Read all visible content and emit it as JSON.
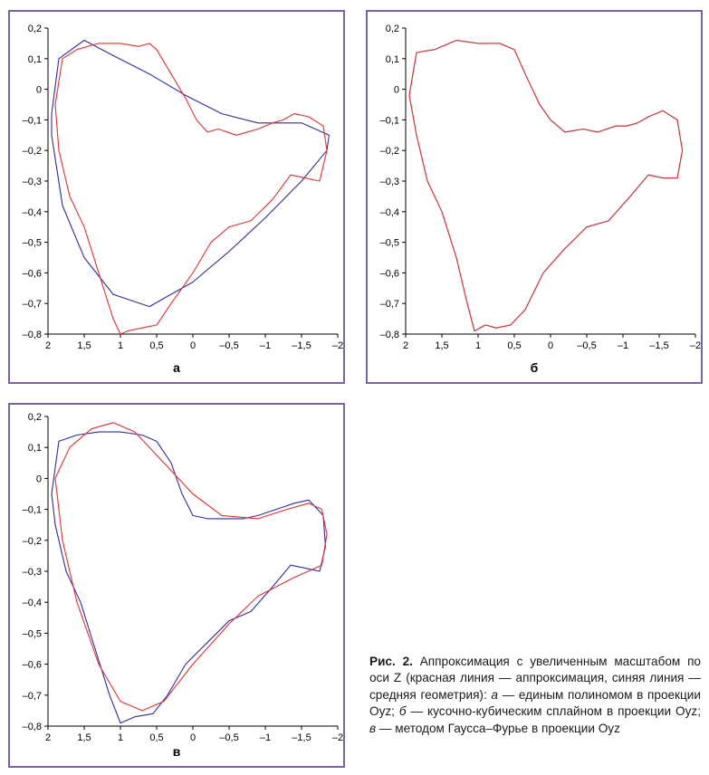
{
  "panels": [
    {
      "label": "а",
      "chart_data": {
        "type": "line",
        "xlim": [
          2,
          -2
        ],
        "ylim": [
          -0.8,
          0.2
        ],
        "xticks": [
          "2",
          "1,5",
          "1",
          "0,5",
          "0",
          "–0,5",
          "–1",
          "–1,5",
          "–2"
        ],
        "yticks": [
          "0,2",
          "0,1",
          "0",
          "–0,1",
          "–0,2",
          "–0,3",
          "–0,4",
          "–0,5",
          "–0,6",
          "–0,7",
          "–0,8"
        ],
        "grid": false,
        "series": [
          {
            "color": "#2e2e9e",
            "points": [
              [
                1.95,
                -0.08
              ],
              [
                1.85,
                0.1
              ],
              [
                1.5,
                0.16
              ],
              [
                1.1,
                0.11
              ],
              [
                0.6,
                0.05
              ],
              [
                0.1,
                -0.02
              ],
              [
                -0.4,
                -0.08
              ],
              [
                -0.9,
                -0.11
              ],
              [
                -1.5,
                -0.11
              ],
              [
                -1.88,
                -0.15
              ],
              [
                -1.85,
                -0.2
              ],
              [
                -1.5,
                -0.3
              ],
              [
                -1,
                -0.42
              ],
              [
                -0.5,
                -0.53
              ],
              [
                0,
                -0.63
              ],
              [
                0.6,
                -0.71
              ],
              [
                1.1,
                -0.67
              ],
              [
                1.5,
                -0.55
              ],
              [
                1.8,
                -0.38
              ],
              [
                1.95,
                -0.15
              ],
              [
                1.95,
                -0.08
              ]
            ]
          },
          {
            "color": "#e03232",
            "points": [
              [
                1.9,
                -0.05
              ],
              [
                1.8,
                0.1
              ],
              [
                1.6,
                0.13
              ],
              [
                1.3,
                0.15
              ],
              [
                1,
                0.15
              ],
              [
                0.75,
                0.14
              ],
              [
                0.6,
                0.15
              ],
              [
                0.5,
                0.13
              ],
              [
                0.3,
                0.05
              ],
              [
                0.1,
                -0.03
              ],
              [
                -0.05,
                -0.1
              ],
              [
                -0.2,
                -0.14
              ],
              [
                -0.35,
                -0.13
              ],
              [
                -0.6,
                -0.15
              ],
              [
                -0.9,
                -0.13
              ],
              [
                -1.1,
                -0.11
              ],
              [
                -1.25,
                -0.1
              ],
              [
                -1.4,
                -0.08
              ],
              [
                -1.6,
                -0.09
              ],
              [
                -1.8,
                -0.12
              ],
              [
                -1.85,
                -0.2
              ],
              [
                -1.75,
                -0.3
              ],
              [
                -1.55,
                -0.29
              ],
              [
                -1.35,
                -0.28
              ],
              [
                -1.1,
                -0.36
              ],
              [
                -0.8,
                -0.43
              ],
              [
                -0.5,
                -0.45
              ],
              [
                -0.25,
                -0.5
              ],
              [
                0,
                -0.6
              ],
              [
                0.3,
                -0.7
              ],
              [
                0.5,
                -0.77
              ],
              [
                0.7,
                -0.78
              ],
              [
                0.9,
                -0.79
              ],
              [
                1,
                -0.8
              ],
              [
                1.1,
                -0.75
              ],
              [
                1.3,
                -0.6
              ],
              [
                1.5,
                -0.45
              ],
              [
                1.7,
                -0.35
              ],
              [
                1.85,
                -0.2
              ],
              [
                1.9,
                -0.05
              ]
            ]
          }
        ]
      }
    },
    {
      "label": "б",
      "chart_data": {
        "type": "line",
        "xlim": [
          2,
          -2
        ],
        "ylim": [
          -0.8,
          0.2
        ],
        "xticks": [
          "2",
          "1,5",
          "1",
          "0,5",
          "0",
          "–0,5",
          "–1",
          "–1,5",
          "–2"
        ],
        "yticks": [
          "0,2",
          "0,1",
          "0",
          "–0,1",
          "–0,2",
          "–0,3",
          "–0,4",
          "–0,5",
          "–0,6",
          "–0,7",
          "–0,8"
        ],
        "grid": false,
        "series": [
          {
            "color": "#2e8fb8",
            "points": [
              [
                1.95,
                -0.02
              ],
              [
                1.85,
                0.12
              ],
              [
                1.6,
                0.13
              ],
              [
                1.3,
                0.16
              ],
              [
                1,
                0.15
              ],
              [
                0.7,
                0.15
              ],
              [
                0.5,
                0.13
              ],
              [
                0.35,
                0.05
              ],
              [
                0.15,
                -0.05
              ],
              [
                0,
                -0.1
              ],
              [
                -0.2,
                -0.14
              ],
              [
                -0.45,
                -0.13
              ],
              [
                -0.65,
                -0.14
              ],
              [
                -0.9,
                -0.12
              ],
              [
                -1.05,
                -0.12
              ],
              [
                -1.2,
                -0.11
              ],
              [
                -1.35,
                -0.09
              ],
              [
                -1.55,
                -0.07
              ],
              [
                -1.75,
                -0.1
              ],
              [
                -1.82,
                -0.2
              ],
              [
                -1.75,
                -0.29
              ],
              [
                -1.55,
                -0.29
              ],
              [
                -1.35,
                -0.28
              ],
              [
                -1.1,
                -0.35
              ],
              [
                -0.8,
                -0.43
              ],
              [
                -0.5,
                -0.45
              ],
              [
                -0.2,
                -0.52
              ],
              [
                0.1,
                -0.6
              ],
              [
                0.35,
                -0.72
              ],
              [
                0.55,
                -0.77
              ],
              [
                0.75,
                -0.78
              ],
              [
                0.9,
                -0.77
              ],
              [
                1.05,
                -0.79
              ],
              [
                1.15,
                -0.7
              ],
              [
                1.3,
                -0.55
              ],
              [
                1.5,
                -0.4
              ],
              [
                1.7,
                -0.3
              ],
              [
                1.85,
                -0.15
              ],
              [
                1.95,
                -0.02
              ]
            ]
          },
          {
            "color": "#e03232",
            "points": [
              [
                1.95,
                -0.02
              ],
              [
                1.85,
                0.12
              ],
              [
                1.6,
                0.13
              ],
              [
                1.3,
                0.16
              ],
              [
                1,
                0.15
              ],
              [
                0.7,
                0.15
              ],
              [
                0.5,
                0.13
              ],
              [
                0.35,
                0.05
              ],
              [
                0.15,
                -0.05
              ],
              [
                0,
                -0.1
              ],
              [
                -0.2,
                -0.14
              ],
              [
                -0.45,
                -0.13
              ],
              [
                -0.65,
                -0.14
              ],
              [
                -0.9,
                -0.12
              ],
              [
                -1.05,
                -0.12
              ],
              [
                -1.2,
                -0.11
              ],
              [
                -1.35,
                -0.09
              ],
              [
                -1.55,
                -0.07
              ],
              [
                -1.75,
                -0.1
              ],
              [
                -1.82,
                -0.2
              ],
              [
                -1.75,
                -0.29
              ],
              [
                -1.55,
                -0.29
              ],
              [
                -1.35,
                -0.28
              ],
              [
                -1.1,
                -0.35
              ],
              [
                -0.8,
                -0.43
              ],
              [
                -0.5,
                -0.45
              ],
              [
                -0.2,
                -0.52
              ],
              [
                0.1,
                -0.6
              ],
              [
                0.35,
                -0.72
              ],
              [
                0.55,
                -0.77
              ],
              [
                0.75,
                -0.78
              ],
              [
                0.9,
                -0.77
              ],
              [
                1.05,
                -0.79
              ],
              [
                1.15,
                -0.7
              ],
              [
                1.3,
                -0.55
              ],
              [
                1.5,
                -0.4
              ],
              [
                1.7,
                -0.3
              ],
              [
                1.85,
                -0.15
              ],
              [
                1.95,
                -0.02
              ]
            ]
          }
        ]
      }
    },
    {
      "label": "в",
      "chart_data": {
        "type": "line",
        "xlim": [
          2,
          -2
        ],
        "ylim": [
          -0.8,
          0.2
        ],
        "xticks": [
          "2",
          "1,5",
          "1",
          "0,5",
          "0",
          "–0,5",
          "–1",
          "–1,5",
          "–2"
        ],
        "yticks": [
          "0,2",
          "0,1",
          "0",
          "–0,1",
          "–0,2",
          "–0,3",
          "–0,4",
          "–0,5",
          "–0,6",
          "–0,7",
          "–0,8"
        ],
        "grid": false,
        "series": [
          {
            "color": "#2e2e9e",
            "points": [
              [
                1.95,
                -0.05
              ],
              [
                1.85,
                0.12
              ],
              [
                1.6,
                0.14
              ],
              [
                1.3,
                0.15
              ],
              [
                1,
                0.15
              ],
              [
                0.7,
                0.14
              ],
              [
                0.5,
                0.12
              ],
              [
                0.3,
                0.05
              ],
              [
                0.15,
                -0.05
              ],
              [
                0,
                -0.12
              ],
              [
                -0.2,
                -0.13
              ],
              [
                -0.45,
                -0.13
              ],
              [
                -0.7,
                -0.13
              ],
              [
                -0.9,
                -0.12
              ],
              [
                -1.15,
                -0.1
              ],
              [
                -1.4,
                -0.08
              ],
              [
                -1.6,
                -0.07
              ],
              [
                -1.8,
                -0.12
              ],
              [
                -1.83,
                -0.22
              ],
              [
                -1.75,
                -0.3
              ],
              [
                -1.55,
                -0.29
              ],
              [
                -1.35,
                -0.28
              ],
              [
                -1.1,
                -0.35
              ],
              [
                -0.8,
                -0.43
              ],
              [
                -0.5,
                -0.46
              ],
              [
                -0.2,
                -0.53
              ],
              [
                0.1,
                -0.6
              ],
              [
                0.35,
                -0.7
              ],
              [
                0.55,
                -0.76
              ],
              [
                0.8,
                -0.77
              ],
              [
                1,
                -0.79
              ],
              [
                1.15,
                -0.7
              ],
              [
                1.35,
                -0.55
              ],
              [
                1.55,
                -0.4
              ],
              [
                1.75,
                -0.3
              ],
              [
                1.9,
                -0.15
              ],
              [
                1.95,
                -0.05
              ]
            ]
          },
          {
            "color": "#e03232",
            "points": [
              [
                1.9,
                0
              ],
              [
                1.7,
                0.1
              ],
              [
                1.4,
                0.16
              ],
              [
                1.1,
                0.18
              ],
              [
                0.8,
                0.15
              ],
              [
                0.4,
                0.05
              ],
              [
                0,
                -0.05
              ],
              [
                -0.4,
                -0.12
              ],
              [
                -0.9,
                -0.13
              ],
              [
                -1.3,
                -0.1
              ],
              [
                -1.6,
                -0.08
              ],
              [
                -1.78,
                -0.1
              ],
              [
                -1.85,
                -0.18
              ],
              [
                -1.78,
                -0.28
              ],
              [
                -1.4,
                -0.32
              ],
              [
                -0.9,
                -0.38
              ],
              [
                -0.5,
                -0.47
              ],
              [
                0,
                -0.6
              ],
              [
                0.4,
                -0.72
              ],
              [
                0.7,
                -0.75
              ],
              [
                1,
                -0.72
              ],
              [
                1.3,
                -0.6
              ],
              [
                1.6,
                -0.4
              ],
              [
                1.8,
                -0.2
              ],
              [
                1.9,
                0
              ]
            ]
          }
        ]
      }
    }
  ],
  "caption": {
    "fig": "Рис. 2.",
    "text_1": " Аппроксимация с увеличенным масштабом по оси Z (красная линия — аппроксимация, синяя линия — средняя геометрия): ",
    "a": "а",
    "text_2": " — единым полиномом в проекции Oyz; ",
    "b": "б",
    "text_3": " — кусочно-кубическим сплайном в проекции Oyz; ",
    "c": "в",
    "text_4": " — методом Гаусса–Фурье в проекции Oyz"
  }
}
